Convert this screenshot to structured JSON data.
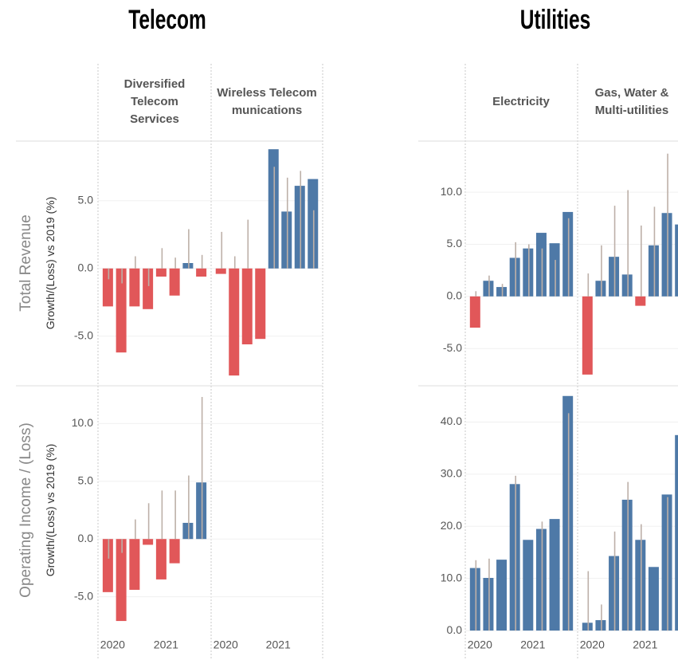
{
  "groups": [
    {
      "title": "Telecom",
      "columns": [
        "Diversified Telecom Services",
        "Wireless Telecommunications"
      ]
    },
    {
      "title": "Utilities",
      "columns": [
        "Electricity",
        "Gas, Water & Multi-utilities"
      ]
    }
  ],
  "rows": [
    {
      "title": "Total Revenue",
      "subtitle": "Growth/(Loss) vs 2019 (%)"
    },
    {
      "title": "Operating Income / (Loss)",
      "subtitle": "Growth/(Loss) vs 2019 (%)"
    }
  ],
  "quarters": [
    "2020",
    null,
    null,
    null,
    "2021",
    null,
    null,
    null
  ],
  "colors": {
    "positive": "#4e79a7",
    "negative": "#e15759",
    "reference": "#bdb0a8"
  },
  "chart_data": [
    {
      "type": "bar",
      "ylim": [
        -8.6,
        9.4
      ],
      "yticks": [
        {
          "value": -5,
          "label": "-5.0"
        },
        {
          "value": 0,
          "label": "0.0"
        },
        {
          "value": 5,
          "label": "5.0"
        }
      ],
      "facets": [
        {
          "values": [
            -2.8,
            -6.2,
            -2.8,
            -3.0,
            -0.6,
            -2.0,
            0.4,
            -0.6
          ],
          "reference": [
            -0.8,
            -1.1,
            0.9,
            -1.3,
            1.5,
            0.8,
            2.9,
            1.0
          ]
        },
        {
          "values": [
            -0.4,
            -7.9,
            -5.6,
            -5.2,
            8.8,
            4.2,
            6.1,
            6.6
          ],
          "reference": [
            2.7,
            0.9,
            3.6,
            null,
            7.5,
            6.7,
            7.2,
            4.3
          ]
        }
      ]
    },
    {
      "type": "bar",
      "ylim": [
        -8.2,
        13.2
      ],
      "yticks": [
        {
          "value": -5,
          "label": "-5.0"
        },
        {
          "value": 0,
          "label": "0.0"
        },
        {
          "value": 5,
          "label": "5.0"
        },
        {
          "value": 10,
          "label": "10.0"
        }
      ],
      "facets": [
        {
          "values": [
            -4.6,
            -7.1,
            -4.4,
            -0.5,
            -3.5,
            -2.1,
            1.4,
            4.9
          ],
          "reference": [
            -1.7,
            -1.2,
            1.7,
            3.1,
            4.2,
            4.2,
            5.5,
            12.3
          ]
        },
        {
          "values": [
            null,
            null,
            null,
            null,
            null,
            null,
            null,
            null
          ],
          "reference": [
            null,
            null,
            null,
            null,
            null,
            null,
            null,
            null
          ]
        }
      ]
    },
    {
      "type": "bar",
      "ylim": [
        -8.5,
        14.9
      ],
      "yticks": [
        {
          "value": -5,
          "label": "-5.0"
        },
        {
          "value": 0,
          "label": "0.0"
        },
        {
          "value": 5,
          "label": "5.0"
        },
        {
          "value": 10,
          "label": "10.0"
        }
      ],
      "facets": [
        {
          "values": [
            -3.0,
            1.5,
            0.9,
            3.7,
            4.6,
            6.1,
            5.1,
            8.1
          ],
          "reference": [
            0.5,
            2.0,
            1.2,
            5.2,
            5.0,
            4.6,
            3.5,
            7.5
          ]
        },
        {
          "values": [
            -7.5,
            1.5,
            3.8,
            2.1,
            -0.9,
            4.9,
            8.0,
            6.9
          ],
          "reference": [
            2.2,
            4.9,
            8.7,
            10.2,
            6.8,
            8.6,
            13.7,
            null
          ]
        }
      ]
    },
    {
      "type": "bar",
      "ylim": [
        -0.6,
        46.8
      ],
      "yticks": [
        {
          "value": 0,
          "label": "0.0"
        },
        {
          "value": 10,
          "label": "10.0"
        },
        {
          "value": 20,
          "label": "20.0"
        },
        {
          "value": 30,
          "label": "30.0"
        },
        {
          "value": 40,
          "label": "40.0"
        }
      ],
      "facets": [
        {
          "values": [
            12.0,
            10.1,
            13.6,
            28.1,
            17.4,
            19.5,
            21.4,
            45.0
          ],
          "reference": [
            13.5,
            13.8,
            null,
            29.7,
            null,
            20.9,
            null,
            41.7
          ]
        },
        {
          "values": [
            1.5,
            2.0,
            14.3,
            25.1,
            17.4,
            12.2,
            26.1,
            37.5
          ],
          "reference": [
            11.4,
            5.0,
            19.0,
            28.5,
            20.4,
            null,
            25.6,
            null
          ]
        }
      ]
    }
  ]
}
